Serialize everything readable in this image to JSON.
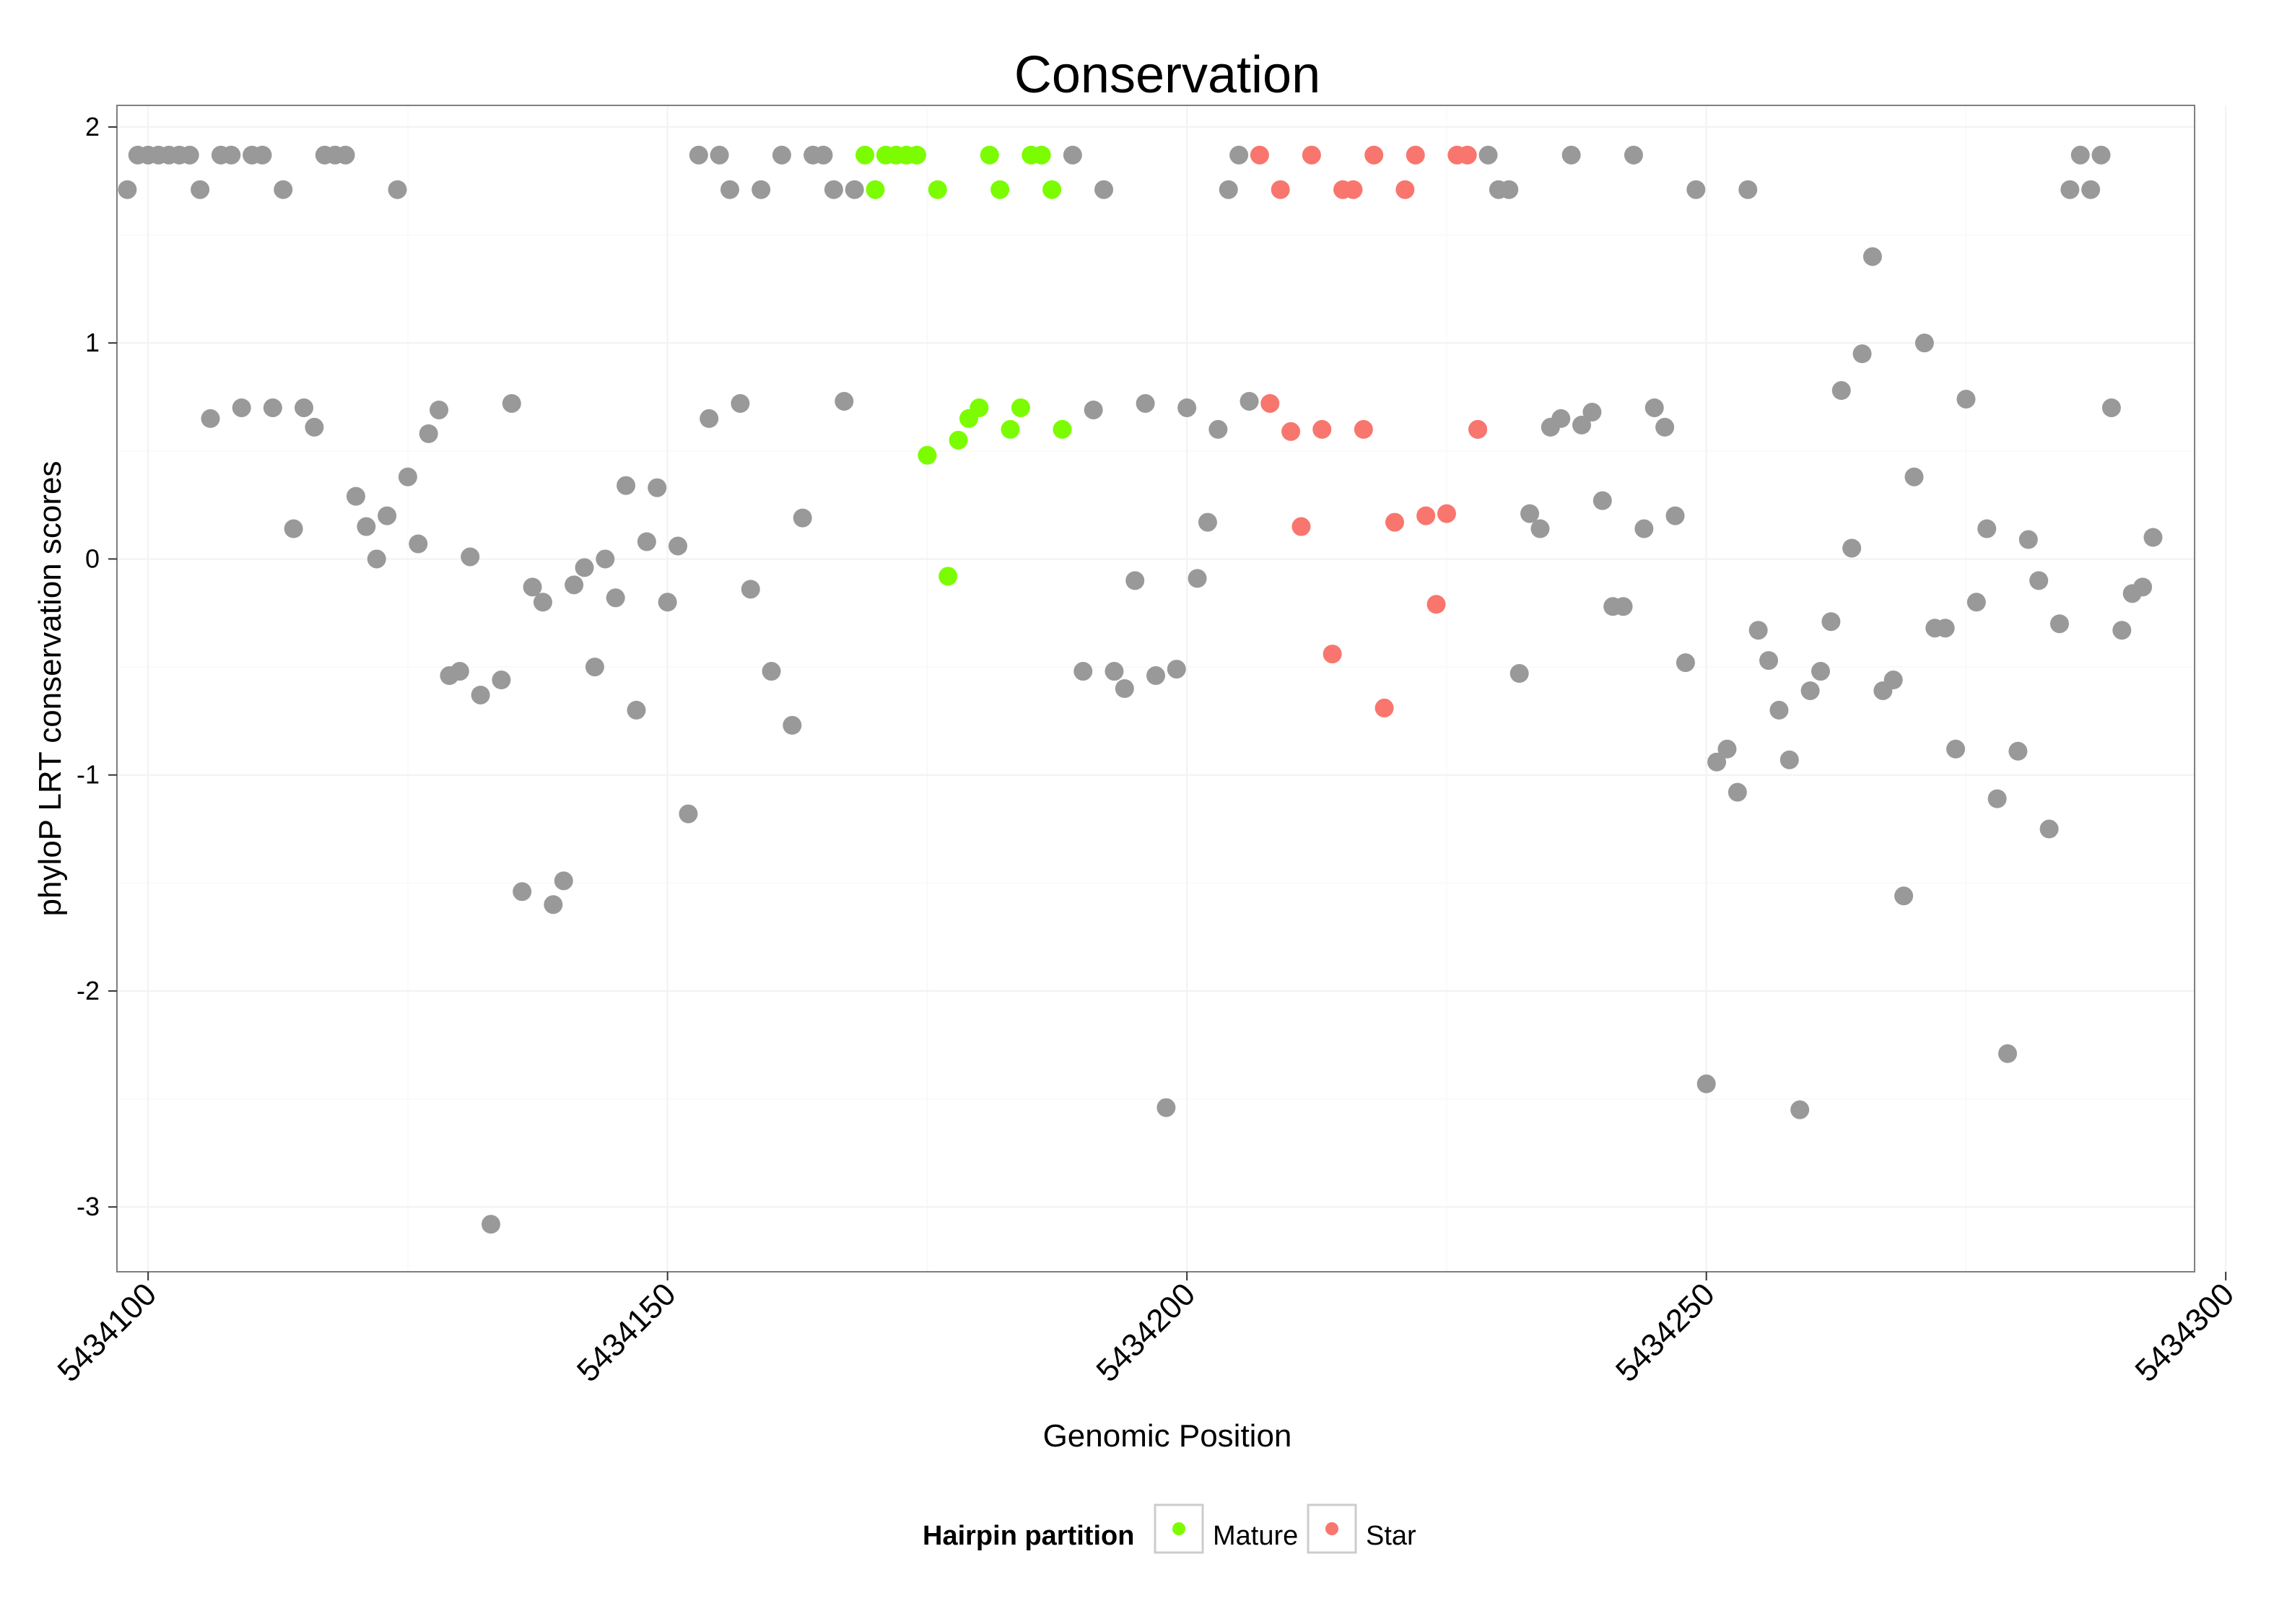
{
  "chart_data": {
    "type": "scatter",
    "title": "Conservation",
    "xlabel": "Genomic Position",
    "ylabel": "phyloP LRT conservation scores",
    "xlim": [
      5434097,
      5434297
    ],
    "ylim": [
      -3.3,
      2.1
    ],
    "x_ticks": [
      5434100,
      5434150,
      5434200,
      5434250,
      5434300
    ],
    "x_tick_labels": [
      "5434100",
      "5434150",
      "5434200",
      "5434250",
      "5434300"
    ],
    "y_ticks": [
      -3,
      -2,
      -1,
      0,
      1,
      2
    ],
    "y_tick_labels": [
      "-3",
      "-2",
      "-1",
      "0",
      "1",
      "2"
    ],
    "grid": true,
    "legend": {
      "title": "Hairpin partition",
      "placement": "bottom",
      "entries": [
        {
          "label": "Mature",
          "color": "#7CFC00"
        },
        {
          "label": "Star",
          "color": "#F8766D"
        }
      ]
    },
    "default_color": "#999999",
    "series": [
      {
        "name": "",
        "color": "#999999",
        "points": [
          [
            5434098,
            1.71
          ],
          [
            5434099,
            1.87
          ],
          [
            5434100,
            1.87
          ],
          [
            5434101,
            1.87
          ],
          [
            5434102,
            1.87
          ],
          [
            5434103,
            1.87
          ],
          [
            5434104,
            1.87
          ],
          [
            5434105,
            1.71
          ],
          [
            5434106,
            0.65
          ],
          [
            5434107,
            1.87
          ],
          [
            5434108,
            1.87
          ],
          [
            5434109,
            0.7
          ],
          [
            5434110,
            1.87
          ],
          [
            5434111,
            1.87
          ],
          [
            5434112,
            0.7
          ],
          [
            5434113,
            1.71
          ],
          [
            5434114,
            0.14
          ],
          [
            5434115,
            0.7
          ],
          [
            5434116,
            0.61
          ],
          [
            5434117,
            1.87
          ],
          [
            5434118,
            1.87
          ],
          [
            5434119,
            1.87
          ],
          [
            5434120,
            0.29
          ],
          [
            5434121,
            0.15
          ],
          [
            5434122,
            0.0
          ],
          [
            5434123,
            0.2
          ],
          [
            5434124,
            1.71
          ],
          [
            5434125,
            0.38
          ],
          [
            5434126,
            0.07
          ],
          [
            5434127,
            0.58
          ],
          [
            5434128,
            0.69
          ],
          [
            5434129,
            -0.54
          ],
          [
            5434130,
            -0.52
          ],
          [
            5434131,
            0.01
          ],
          [
            5434132,
            -0.63
          ],
          [
            5434133,
            -3.08
          ],
          [
            5434134,
            -0.56
          ],
          [
            5434135,
            0.72
          ],
          [
            5434136,
            -1.54
          ],
          [
            5434137,
            -0.13
          ],
          [
            5434138,
            -0.2
          ],
          [
            5434139,
            -1.6
          ],
          [
            5434140,
            -1.49
          ],
          [
            5434141,
            -0.12
          ],
          [
            5434142,
            -0.04
          ],
          [
            5434143,
            -0.5
          ],
          [
            5434144,
            0.0
          ],
          [
            5434145,
            -0.18
          ],
          [
            5434146,
            0.34
          ],
          [
            5434147,
            -0.7
          ],
          [
            5434148,
            0.08
          ],
          [
            5434149,
            0.33
          ],
          [
            5434150,
            -0.2
          ],
          [
            5434151,
            0.06
          ],
          [
            5434152,
            -1.18
          ],
          [
            5434153,
            1.87
          ],
          [
            5434154,
            0.65
          ],
          [
            5434155,
            1.87
          ],
          [
            5434156,
            1.71
          ],
          [
            5434157,
            0.72
          ],
          [
            5434158,
            -0.14
          ],
          [
            5434159,
            1.71
          ],
          [
            5434160,
            -0.52
          ],
          [
            5434161,
            1.87
          ],
          [
            5434162,
            -0.77
          ],
          [
            5434163,
            0.19
          ],
          [
            5434164,
            1.87
          ],
          [
            5434165,
            1.87
          ],
          [
            5434166,
            1.71
          ],
          [
            5434167,
            0.73
          ],
          [
            5434168,
            1.71
          ],
          [
            5434189,
            1.87
          ],
          [
            5434190,
            -0.52
          ],
          [
            5434191,
            0.69
          ],
          [
            5434192,
            1.71
          ],
          [
            5434193,
            -0.52
          ],
          [
            5434194,
            -0.6
          ],
          [
            5434195,
            -0.1
          ],
          [
            5434196,
            0.72
          ],
          [
            5434197,
            -0.54
          ],
          [
            5434198,
            -2.54
          ],
          [
            5434199,
            -0.51
          ],
          [
            5434200,
            0.7
          ],
          [
            5434201,
            -0.09
          ],
          [
            5434202,
            0.17
          ],
          [
            5434203,
            0.6
          ],
          [
            5434204,
            1.71
          ],
          [
            5434205,
            1.87
          ],
          [
            5434206,
            0.73
          ],
          [
            5434228,
            0.6
          ],
          [
            5434229,
            1.87
          ],
          [
            5434230,
            1.71
          ],
          [
            5434231,
            1.71
          ],
          [
            5434232,
            -0.53
          ],
          [
            5434233,
            0.21
          ],
          [
            5434234,
            0.14
          ],
          [
            5434235,
            0.61
          ],
          [
            5434236,
            0.65
          ],
          [
            5434237,
            1.87
          ],
          [
            5434238,
            0.62
          ],
          [
            5434239,
            0.68
          ],
          [
            5434240,
            0.27
          ],
          [
            5434241,
            -0.22
          ],
          [
            5434242,
            -0.22
          ],
          [
            5434243,
            1.87
          ],
          [
            5434244,
            0.14
          ],
          [
            5434245,
            0.7
          ],
          [
            5434246,
            0.61
          ],
          [
            5434247,
            0.2
          ],
          [
            5434248,
            -0.48
          ],
          [
            5434249,
            1.71
          ],
          [
            5434250,
            -2.43
          ],
          [
            5434251,
            -0.94
          ],
          [
            5434252,
            -0.88
          ],
          [
            5434253,
            -1.08
          ],
          [
            5434254,
            1.71
          ],
          [
            5434255,
            -0.33
          ],
          [
            5434256,
            -0.47
          ],
          [
            5434257,
            -0.7
          ],
          [
            5434258,
            -0.93
          ],
          [
            5434259,
            -2.55
          ],
          [
            5434260,
            -0.61
          ],
          [
            5434261,
            -0.52
          ],
          [
            5434262,
            -0.29
          ],
          [
            5434263,
            0.78
          ],
          [
            5434264,
            0.05
          ],
          [
            5434265,
            0.95
          ],
          [
            5434266,
            1.4
          ],
          [
            5434267,
            -0.61
          ],
          [
            5434268,
            -0.56
          ],
          [
            5434269,
            -1.56
          ],
          [
            5434270,
            0.38
          ],
          [
            5434271,
            1.0
          ],
          [
            5434272,
            -0.32
          ],
          [
            5434273,
            -0.32
          ],
          [
            5434274,
            -0.88
          ],
          [
            5434275,
            0.74
          ],
          [
            5434276,
            -0.2
          ],
          [
            5434277,
            0.14
          ],
          [
            5434278,
            -1.11
          ],
          [
            5434279,
            -2.29
          ],
          [
            5434280,
            -0.89
          ],
          [
            5434281,
            0.09
          ],
          [
            5434282,
            -0.1
          ],
          [
            5434283,
            -1.25
          ],
          [
            5434284,
            -0.3
          ],
          [
            5434285,
            1.71
          ],
          [
            5434286,
            1.87
          ],
          [
            5434287,
            1.71
          ],
          [
            5434288,
            1.87
          ],
          [
            5434289,
            0.7
          ],
          [
            5434290,
            -0.33
          ],
          [
            5434291,
            -0.16
          ],
          [
            5434292,
            -0.13
          ],
          [
            5434293,
            0.1
          ]
        ]
      },
      {
        "name": "Mature",
        "color": "#7CFC00",
        "points": [
          [
            5434169,
            1.87
          ],
          [
            5434170,
            1.71
          ],
          [
            5434171,
            1.87
          ],
          [
            5434172,
            1.87
          ],
          [
            5434173,
            1.87
          ],
          [
            5434174,
            1.87
          ],
          [
            5434175,
            0.48
          ],
          [
            5434176,
            1.71
          ],
          [
            5434177,
            -0.08
          ],
          [
            5434178,
            0.55
          ],
          [
            5434179,
            0.65
          ],
          [
            5434180,
            0.7
          ],
          [
            5434181,
            1.87
          ],
          [
            5434182,
            1.71
          ],
          [
            5434183,
            0.6
          ],
          [
            5434184,
            0.7
          ],
          [
            5434185,
            1.87
          ],
          [
            5434186,
            1.87
          ],
          [
            5434187,
            1.71
          ],
          [
            5434188,
            0.6
          ]
        ]
      },
      {
        "name": "Star",
        "color": "#F8766D",
        "points": [
          [
            5434207,
            1.87
          ],
          [
            5434208,
            0.72
          ],
          [
            5434209,
            1.71
          ],
          [
            5434210,
            0.59
          ],
          [
            5434211,
            0.15
          ],
          [
            5434212,
            1.87
          ],
          [
            5434213,
            0.6
          ],
          [
            5434214,
            -0.44
          ],
          [
            5434215,
            1.71
          ],
          [
            5434216,
            1.71
          ],
          [
            5434217,
            0.6
          ],
          [
            5434218,
            1.87
          ],
          [
            5434219,
            -0.69
          ],
          [
            5434220,
            0.17
          ],
          [
            5434221,
            1.71
          ],
          [
            5434222,
            1.87
          ],
          [
            5434223,
            0.2
          ],
          [
            5434224,
            -0.21
          ],
          [
            5434225,
            0.21
          ],
          [
            5434226,
            1.87
          ],
          [
            5434227,
            1.87
          ],
          [
            5434228,
            0.6
          ]
        ]
      }
    ]
  }
}
